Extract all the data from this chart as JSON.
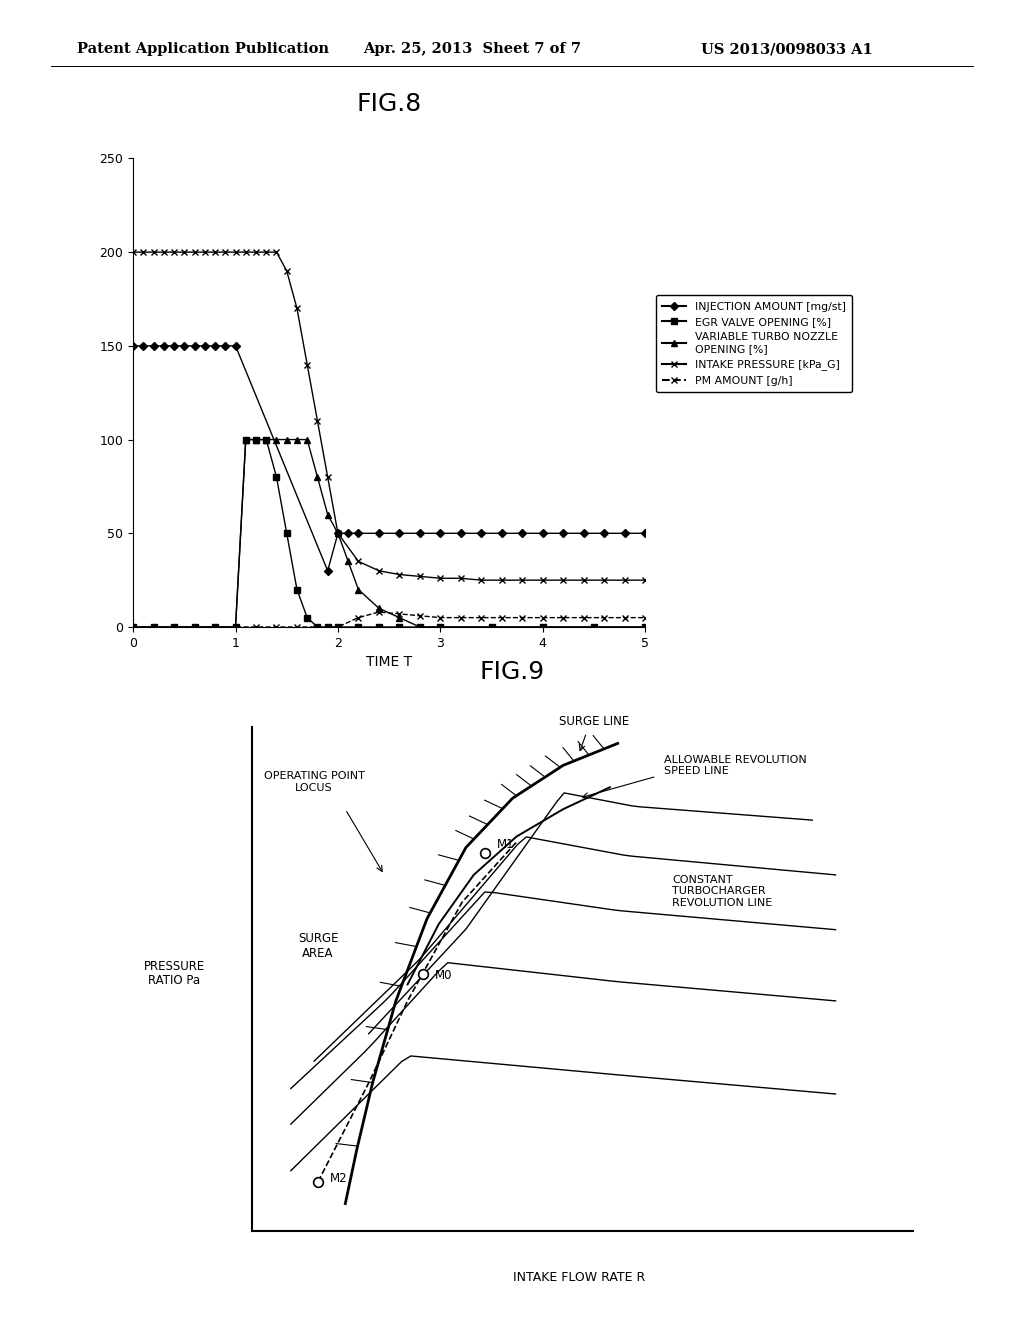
{
  "header_left": "Patent Application Publication",
  "header_mid": "Apr. 25, 2013  Sheet 7 of 7",
  "header_right": "US 2013/0098033 A1",
  "fig8_title": "FIG.8",
  "fig8_xlabel": "TIME T",
  "fig8_ylim": [
    0,
    250
  ],
  "fig8_xlim": [
    0,
    5
  ],
  "fig8_yticks": [
    0,
    50,
    100,
    150,
    200,
    250
  ],
  "fig8_xticks": [
    0,
    1,
    2,
    3,
    4,
    5
  ],
  "injection_x": [
    0,
    0.1,
    0.2,
    0.3,
    0.4,
    0.5,
    0.6,
    0.7,
    0.8,
    0.9,
    1.0,
    1.9,
    2.0,
    2.1,
    2.2,
    2.4,
    2.6,
    2.8,
    3.0,
    3.2,
    3.4,
    3.6,
    3.8,
    4.0,
    4.2,
    4.4,
    4.6,
    4.8,
    5.0
  ],
  "injection_y": [
    150,
    150,
    150,
    150,
    150,
    150,
    150,
    150,
    150,
    150,
    150,
    30,
    50,
    50,
    50,
    50,
    50,
    50,
    50,
    50,
    50,
    50,
    50,
    50,
    50,
    50,
    50,
    50,
    50
  ],
  "egr_x": [
    0,
    0.2,
    0.4,
    0.6,
    0.8,
    1.0,
    1.1,
    1.2,
    1.3,
    1.4,
    1.5,
    1.6,
    1.7,
    1.8,
    1.9,
    2.0,
    2.2,
    2.4,
    2.6,
    2.8,
    3.0,
    3.5,
    4.0,
    4.5,
    5.0
  ],
  "egr_y": [
    0,
    0,
    0,
    0,
    0,
    0,
    100,
    100,
    100,
    80,
    50,
    20,
    5,
    0,
    0,
    0,
    0,
    0,
    0,
    0,
    0,
    0,
    0,
    0,
    0
  ],
  "turbo_x": [
    0,
    0.2,
    0.4,
    0.6,
    0.8,
    1.0,
    1.1,
    1.2,
    1.3,
    1.4,
    1.5,
    1.6,
    1.7,
    1.8,
    1.9,
    2.0,
    2.1,
    2.2,
    2.4,
    2.6,
    2.8,
    3.0,
    3.5,
    4.0,
    4.5,
    5.0
  ],
  "turbo_y": [
    0,
    0,
    0,
    0,
    0,
    0,
    100,
    100,
    100,
    100,
    100,
    100,
    100,
    80,
    60,
    50,
    35,
    20,
    10,
    5,
    0,
    0,
    0,
    0,
    0,
    0
  ],
  "intake_x": [
    0,
    0.1,
    0.2,
    0.3,
    0.4,
    0.5,
    0.6,
    0.7,
    0.8,
    0.9,
    1.0,
    1.1,
    1.2,
    1.3,
    1.4,
    1.5,
    1.6,
    1.7,
    1.8,
    1.9,
    2.0,
    2.2,
    2.4,
    2.6,
    2.8,
    3.0,
    3.2,
    3.4,
    3.6,
    3.8,
    4.0,
    4.2,
    4.4,
    4.6,
    4.8,
    5.0
  ],
  "intake_y": [
    200,
    200,
    200,
    200,
    200,
    200,
    200,
    200,
    200,
    200,
    200,
    200,
    200,
    200,
    200,
    190,
    170,
    140,
    110,
    80,
    50,
    35,
    30,
    28,
    27,
    26,
    26,
    25,
    25,
    25,
    25,
    25,
    25,
    25,
    25,
    25
  ],
  "pm_x": [
    0,
    0.2,
    0.4,
    0.6,
    0.8,
    1.0,
    1.2,
    1.4,
    1.6,
    1.8,
    2.0,
    2.2,
    2.4,
    2.6,
    2.8,
    3.0,
    3.2,
    3.4,
    3.6,
    3.8,
    4.0,
    4.2,
    4.4,
    4.6,
    4.8,
    5.0
  ],
  "pm_y": [
    0,
    0,
    0,
    0,
    0,
    0,
    0,
    0,
    0,
    0,
    0,
    5,
    8,
    7,
    6,
    5,
    5,
    5,
    5,
    5,
    5,
    5,
    5,
    5,
    5,
    5
  ],
  "legend_injection": "INJECTION AMOUNT [mg/st]",
  "legend_egr": "EGR VALVE OPENING [%]",
  "legend_turbo": "VARIABLE TURBO NOZZLE\nOPENING [%]",
  "legend_intake": "INTAKE PRESSURE [kPa_G]",
  "legend_pm": "PM AMOUNT [g/h]",
  "fig9_title": "FIG.9",
  "fig9_xlabel": "INTAKE FLOW RATE R",
  "fig9_ylabel": "PRESSURE\nRATIO Pa"
}
